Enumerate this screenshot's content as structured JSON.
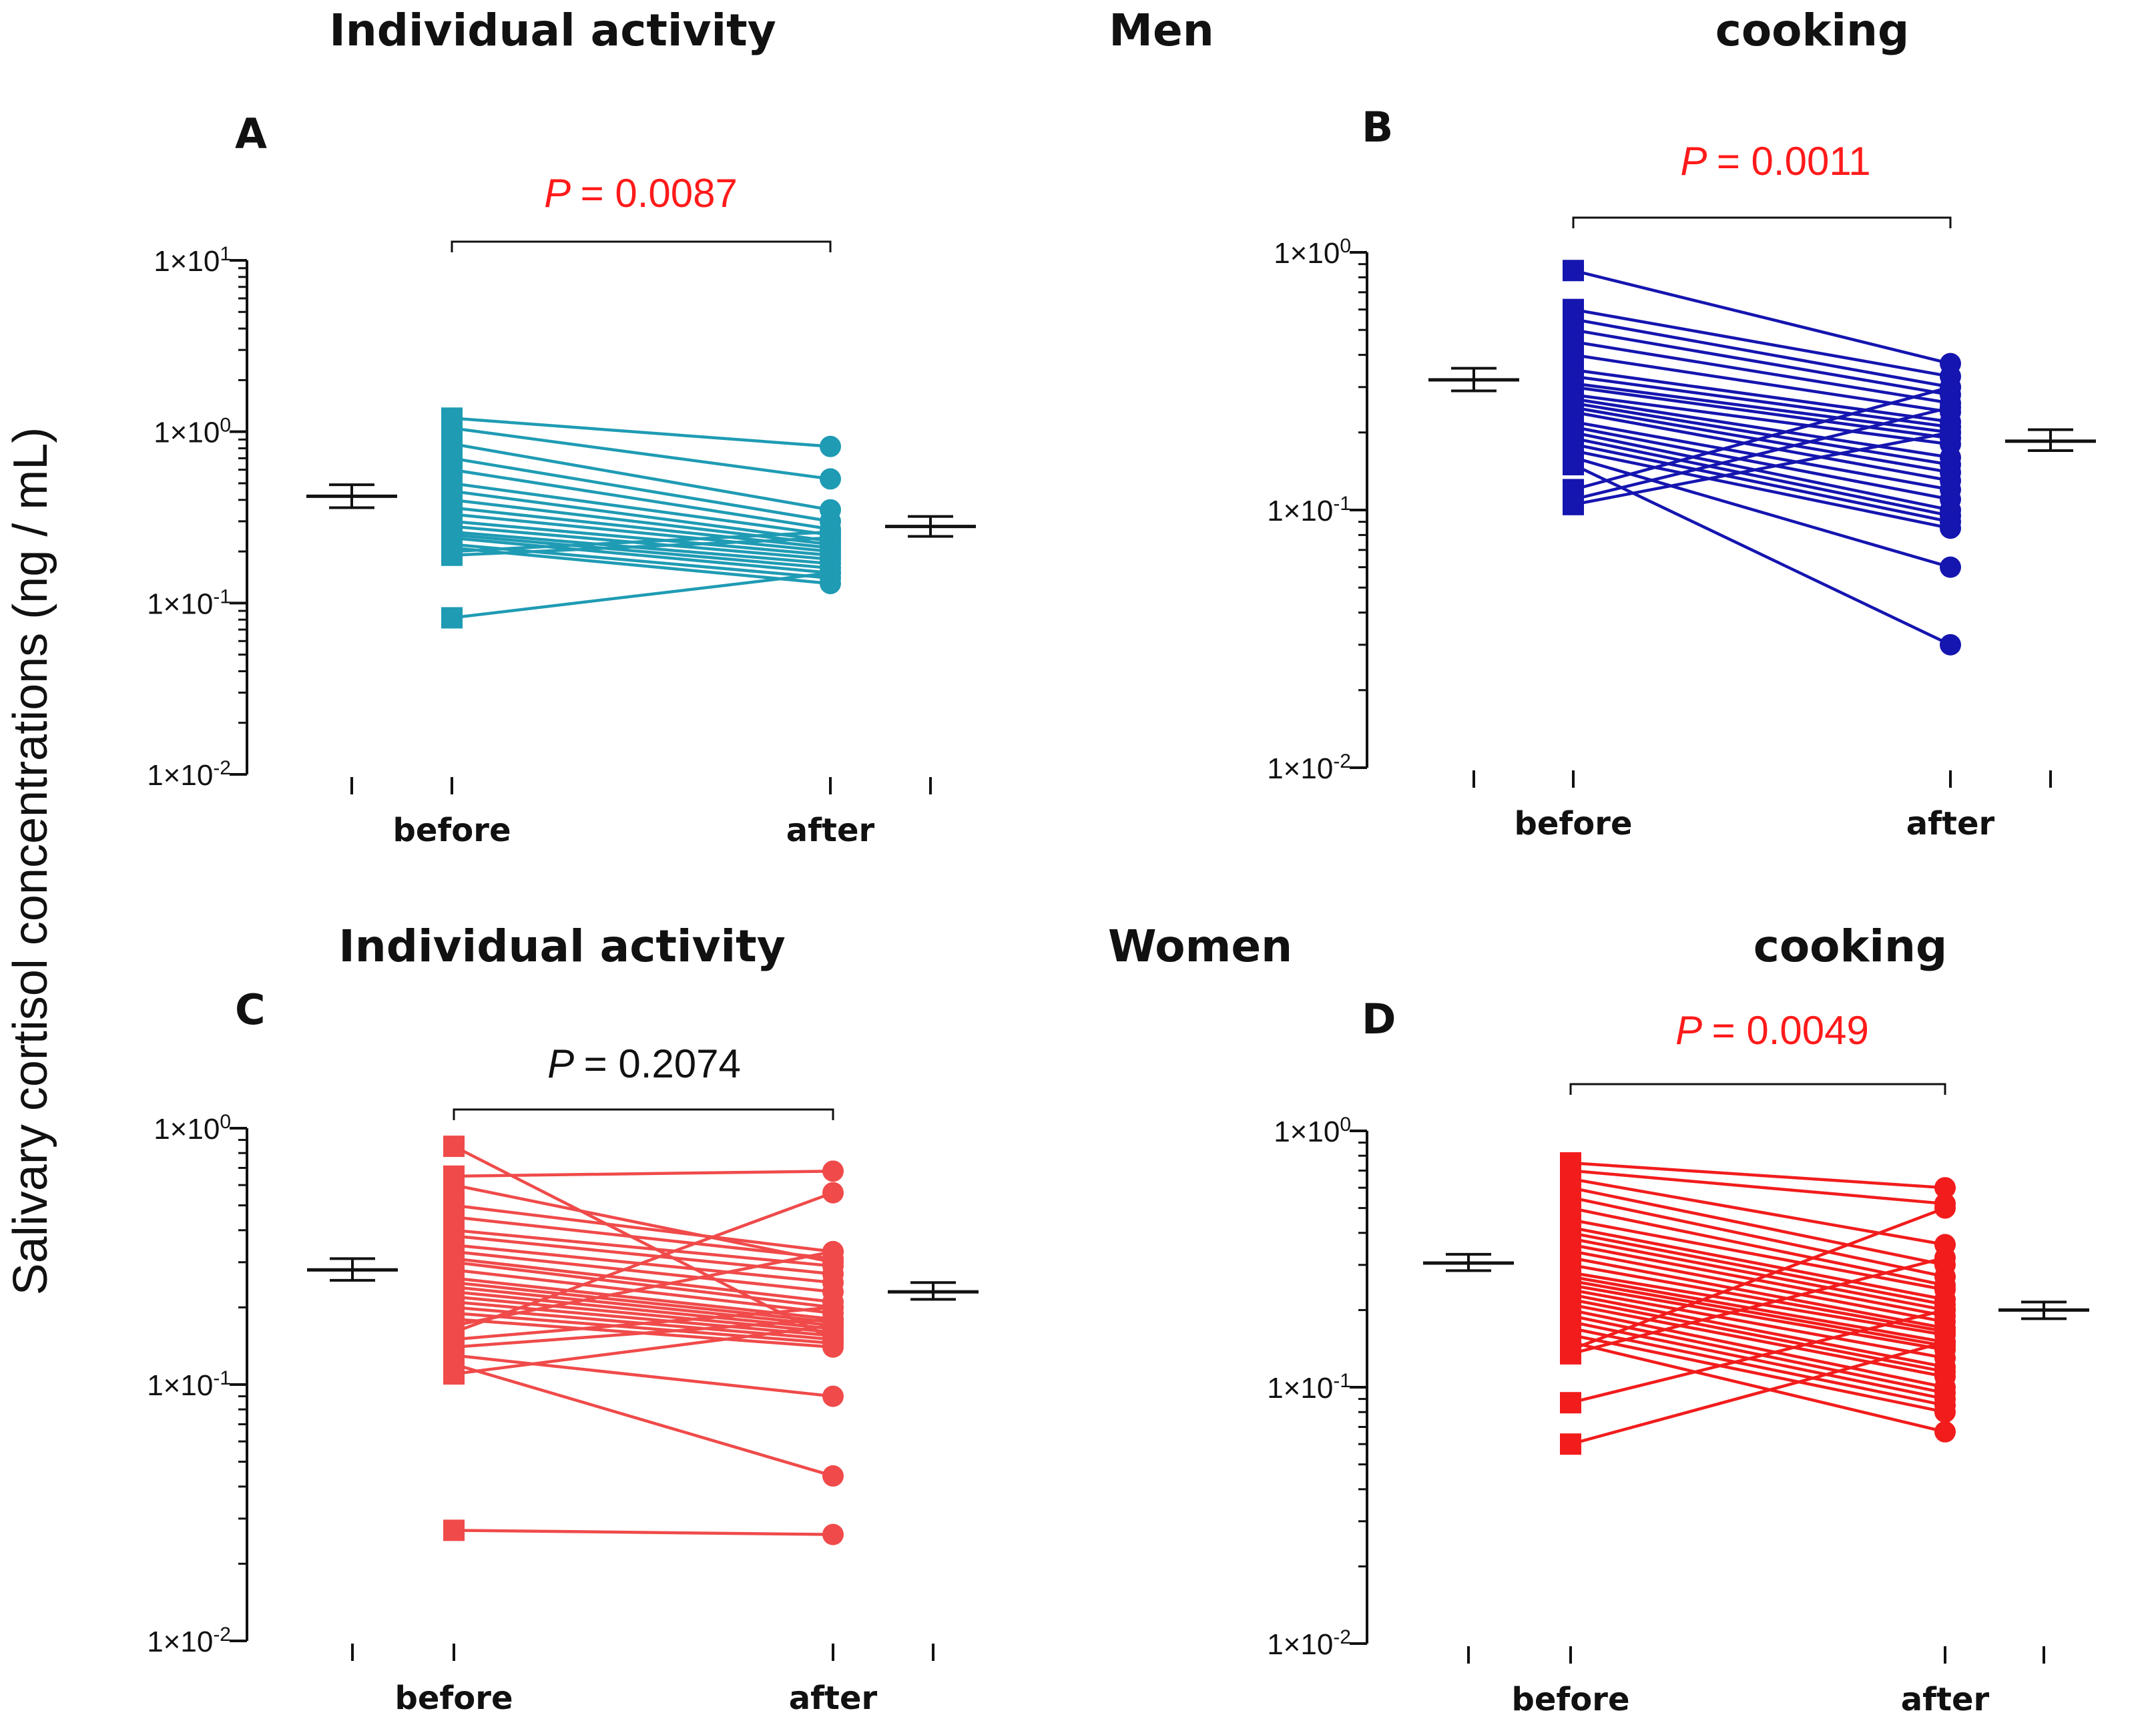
{
  "figure": {
    "y_axis_label": "Salivary cortisol  concentrations (ng / mL)",
    "headers": {
      "men_left": "Individual activity",
      "men_center": "Men",
      "men_right": "cooking",
      "women_left": "Individual activity",
      "women_center": "Women",
      "women_right": "cooking"
    }
  },
  "chart_data": [
    {
      "panel": "A",
      "type": "scatter",
      "title": "Individual activity (Men)",
      "xlabel": "",
      "ylabel": "Salivary cortisol concentrations (ng / mL)",
      "categories": [
        "before",
        "after"
      ],
      "y_scale": "log",
      "ylim": [
        0.01,
        10
      ],
      "y_ticks": [
        "1×10^1",
        "1×10^0",
        "1×10^-1",
        "1×10^-2"
      ],
      "p_value": {
        "prefix": "P",
        "value": "= 0.0087",
        "significant": true
      },
      "color": "#1f9bb4",
      "before_marker": "square",
      "after_marker": "circle",
      "pairs": [
        [
          1.2,
          0.82
        ],
        [
          1.05,
          0.53
        ],
        [
          0.85,
          0.35
        ],
        [
          0.7,
          0.3
        ],
        [
          0.6,
          0.27
        ],
        [
          0.5,
          0.25
        ],
        [
          0.45,
          0.23
        ],
        [
          0.4,
          0.22
        ],
        [
          0.36,
          0.21
        ],
        [
          0.33,
          0.2
        ],
        [
          0.3,
          0.19
        ],
        [
          0.28,
          0.18
        ],
        [
          0.26,
          0.17
        ],
        [
          0.25,
          0.16
        ],
        [
          0.24,
          0.15
        ],
        [
          0.22,
          0.14
        ],
        [
          0.21,
          0.13
        ],
        [
          0.2,
          0.26
        ],
        [
          0.19,
          0.24
        ],
        [
          0.082,
          0.15
        ]
      ],
      "before_mean_sem": {
        "mean": 0.42,
        "low": 0.36,
        "high": 0.49
      },
      "after_mean_sem": {
        "mean": 0.28,
        "low": 0.245,
        "high": 0.32
      }
    },
    {
      "panel": "B",
      "type": "scatter",
      "title": "cooking (Men)",
      "xlabel": "",
      "ylabel": "Salivary cortisol concentrations (ng / mL)",
      "categories": [
        "before",
        "after"
      ],
      "y_scale": "log",
      "ylim": [
        0.01,
        1
      ],
      "y_ticks": [
        "1×10^0",
        "1×10^-1",
        "1×10^-2"
      ],
      "p_value": {
        "prefix": "P",
        "value": "= 0.0011",
        "significant": true
      },
      "color": "#1515b0",
      "before_marker": "square",
      "after_marker": "circle",
      "pairs": [
        [
          0.85,
          0.37
        ],
        [
          0.6,
          0.33
        ],
        [
          0.55,
          0.3
        ],
        [
          0.5,
          0.28
        ],
        [
          0.45,
          0.26
        ],
        [
          0.4,
          0.24
        ],
        [
          0.35,
          0.22
        ],
        [
          0.33,
          0.21
        ],
        [
          0.31,
          0.2
        ],
        [
          0.3,
          0.19
        ],
        [
          0.28,
          0.18
        ],
        [
          0.27,
          0.16
        ],
        [
          0.26,
          0.15
        ],
        [
          0.25,
          0.14
        ],
        [
          0.24,
          0.13
        ],
        [
          0.22,
          0.12
        ],
        [
          0.21,
          0.11
        ],
        [
          0.2,
          0.1
        ],
        [
          0.19,
          0.095
        ],
        [
          0.18,
          0.09
        ],
        [
          0.17,
          0.085
        ],
        [
          0.16,
          0.06
        ],
        [
          0.15,
          0.03
        ],
        [
          0.12,
          0.3
        ],
        [
          0.11,
          0.25
        ],
        [
          0.105,
          0.2
        ]
      ],
      "before_mean_sem": {
        "mean": 0.32,
        "low": 0.29,
        "high": 0.355
      },
      "after_mean_sem": {
        "mean": 0.185,
        "low": 0.17,
        "high": 0.205
      }
    },
    {
      "panel": "C",
      "type": "scatter",
      "title": "Individual activity (Women)",
      "xlabel": "",
      "ylabel": "Salivary cortisol concentrations (ng / mL)",
      "categories": [
        "before",
        "after"
      ],
      "y_scale": "log",
      "ylim": [
        0.01,
        1
      ],
      "y_ticks": [
        "1×10^0",
        "1×10^-1",
        "1×10^-2"
      ],
      "p_value": {
        "prefix": "P",
        "value": "= 0.2074",
        "significant": false
      },
      "color": "#f04a4a",
      "before_marker": "square",
      "after_marker": "circle",
      "pairs": [
        [
          0.85,
          0.15
        ],
        [
          0.65,
          0.68
        ],
        [
          0.6,
          0.3
        ],
        [
          0.5,
          0.33
        ],
        [
          0.45,
          0.31
        ],
        [
          0.4,
          0.29
        ],
        [
          0.38,
          0.27
        ],
        [
          0.35,
          0.25
        ],
        [
          0.33,
          0.23
        ],
        [
          0.31,
          0.21
        ],
        [
          0.3,
          0.2
        ],
        [
          0.28,
          0.19
        ],
        [
          0.26,
          0.18
        ],
        [
          0.25,
          0.175
        ],
        [
          0.24,
          0.17
        ],
        [
          0.23,
          0.165
        ],
        [
          0.22,
          0.16
        ],
        [
          0.21,
          0.155
        ],
        [
          0.2,
          0.15
        ],
        [
          0.19,
          0.145
        ],
        [
          0.18,
          0.14
        ],
        [
          0.17,
          0.33
        ],
        [
          0.16,
          0.56
        ],
        [
          0.15,
          0.2
        ],
        [
          0.14,
          0.18
        ],
        [
          0.13,
          0.09
        ],
        [
          0.12,
          0.044
        ],
        [
          0.11,
          0.17
        ],
        [
          0.027,
          0.026
        ]
      ],
      "before_mean_sem": {
        "mean": 0.28,
        "low": 0.255,
        "high": 0.31
      },
      "after_mean_sem": {
        "mean": 0.23,
        "low": 0.215,
        "high": 0.25
      }
    },
    {
      "panel": "D",
      "type": "scatter",
      "title": "cooking (Women)",
      "xlabel": "",
      "ylabel": "Salivary cortisol concentrations (ng / mL)",
      "categories": [
        "before",
        "after"
      ],
      "y_scale": "log",
      "ylim": [
        0.01,
        1
      ],
      "y_ticks": [
        "1×10^0",
        "1×10^-1",
        "1×10^-2"
      ],
      "p_value": {
        "prefix": "P",
        "value": "= 0.0049",
        "significant": true
      },
      "color": "#f21c1c",
      "before_marker": "square",
      "after_marker": "circle",
      "pairs": [
        [
          0.75,
          0.6
        ],
        [
          0.7,
          0.52
        ],
        [
          0.65,
          0.36
        ],
        [
          0.6,
          0.3
        ],
        [
          0.55,
          0.27
        ],
        [
          0.5,
          0.25
        ],
        [
          0.45,
          0.24
        ],
        [
          0.42,
          0.22
        ],
        [
          0.4,
          0.21
        ],
        [
          0.38,
          0.2
        ],
        [
          0.36,
          0.19
        ],
        [
          0.34,
          0.18
        ],
        [
          0.32,
          0.17
        ],
        [
          0.3,
          0.165
        ],
        [
          0.28,
          0.16
        ],
        [
          0.27,
          0.15
        ],
        [
          0.26,
          0.145
        ],
        [
          0.25,
          0.14
        ],
        [
          0.24,
          0.13
        ],
        [
          0.23,
          0.12
        ],
        [
          0.22,
          0.115
        ],
        [
          0.21,
          0.11
        ],
        [
          0.2,
          0.1
        ],
        [
          0.19,
          0.095
        ],
        [
          0.18,
          0.09
        ],
        [
          0.17,
          0.085
        ],
        [
          0.16,
          0.08
        ],
        [
          0.15,
          0.067
        ],
        [
          0.14,
          0.5
        ],
        [
          0.135,
          0.32
        ],
        [
          0.087,
          0.2
        ],
        [
          0.06,
          0.15
        ]
      ],
      "before_mean_sem": {
        "mean": 0.305,
        "low": 0.285,
        "high": 0.33
      },
      "after_mean_sem": {
        "mean": 0.2,
        "low": 0.185,
        "high": 0.215
      }
    }
  ]
}
